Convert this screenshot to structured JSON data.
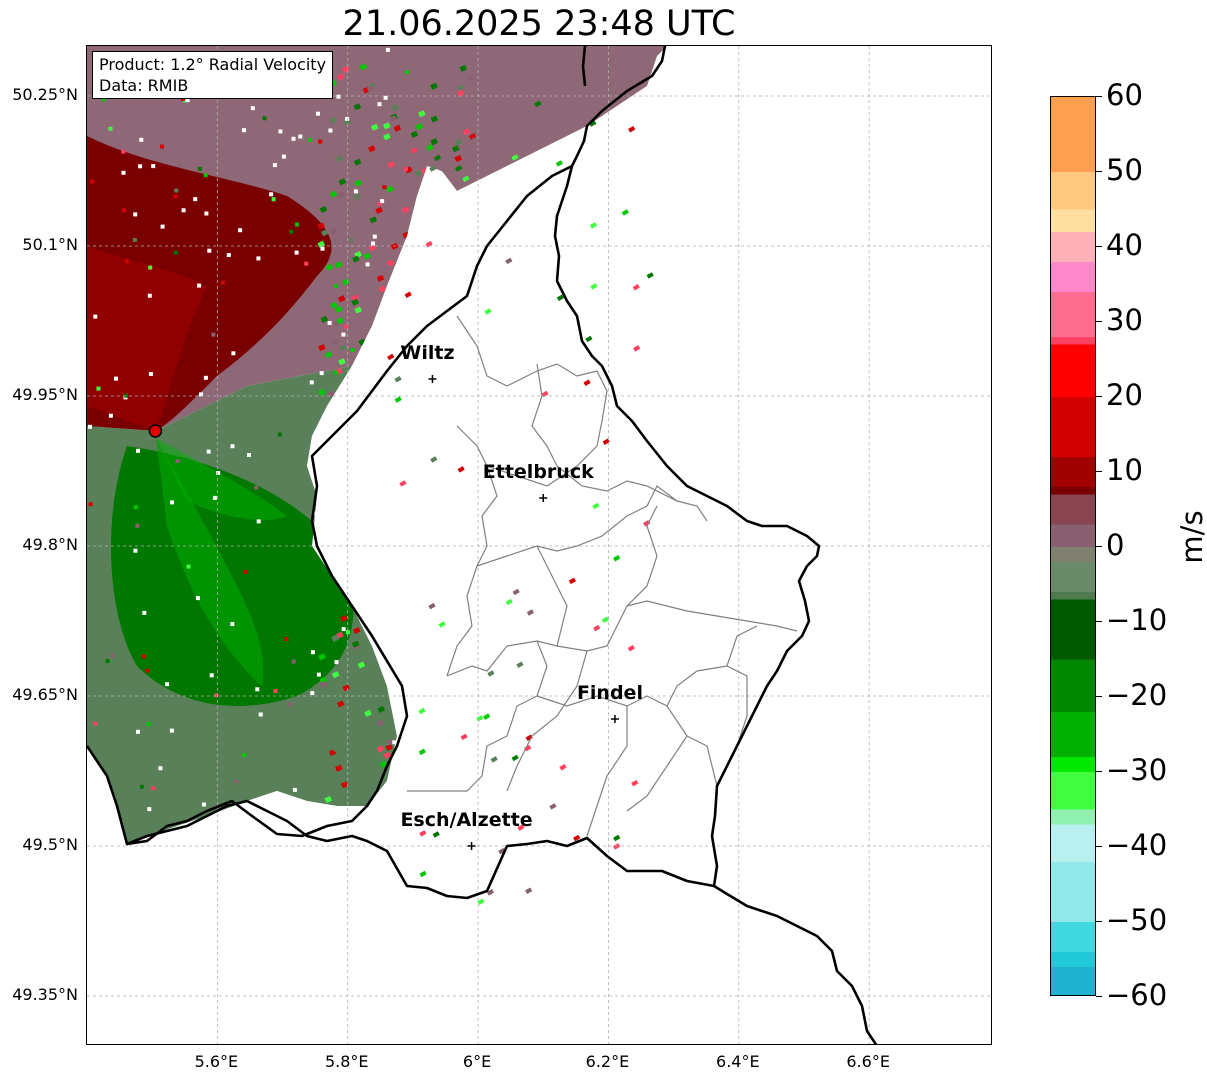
{
  "title": "21.06.2025 23:48 UTC",
  "info": {
    "product": "Product: 1.2° Radial Velocity",
    "data": "Data: RMIB"
  },
  "cities": [
    {
      "name": "Wiltz",
      "lon": 5.93,
      "lat": 49.967
    },
    {
      "name": "Ettelbruck",
      "lon": 6.1,
      "lat": 49.848
    },
    {
      "name": "Findel",
      "lon": 6.21,
      "lat": 49.627
    },
    {
      "name": "Esch/Alzette",
      "lon": 5.99,
      "lat": 49.5
    }
  ],
  "radar_site": {
    "lon": 5.505,
    "lat": 49.915,
    "color": "#e00000"
  },
  "axes": {
    "lon_ticks": [
      {
        "value": 5.6,
        "label": "5.6°E"
      },
      {
        "value": 5.8,
        "label": "5.8°E"
      },
      {
        "value": 6.0,
        "label": "6°E"
      },
      {
        "value": 6.2,
        "label": "6.2°E"
      },
      {
        "value": 6.4,
        "label": "6.4°E"
      },
      {
        "value": 6.6,
        "label": "6.6°E"
      }
    ],
    "lat_ticks": [
      {
        "value": 50.25,
        "label": "50.25°N"
      },
      {
        "value": 50.1,
        "label": "50.1°N"
      },
      {
        "value": 49.95,
        "label": "49.95°N"
      },
      {
        "value": 49.8,
        "label": "49.8°N"
      },
      {
        "value": 49.65,
        "label": "49.65°N"
      },
      {
        "value": 49.5,
        "label": "49.5°N"
      },
      {
        "value": 49.35,
        "label": "49.35°N"
      }
    ],
    "lon_range": [
      5.4,
      6.79
    ],
    "lat_range": [
      49.3,
      50.3
    ],
    "grid": true
  },
  "colorbar": {
    "label": "m/s",
    "range": [
      -60,
      60
    ],
    "ticks": [
      {
        "value": 60,
        "label": "60"
      },
      {
        "value": 50,
        "label": "50"
      },
      {
        "value": 40,
        "label": "40"
      },
      {
        "value": 30,
        "label": "30"
      },
      {
        "value": 20,
        "label": "20"
      },
      {
        "value": 10,
        "label": "10"
      },
      {
        "value": 0,
        "label": "0"
      },
      {
        "value": -10,
        "label": "−10"
      },
      {
        "value": -20,
        "label": "−20"
      },
      {
        "value": -30,
        "label": "−30"
      },
      {
        "value": -40,
        "label": "−40"
      },
      {
        "value": -50,
        "label": "−50"
      },
      {
        "value": -60,
        "label": "−60"
      }
    ],
    "stops": [
      {
        "value": 60,
        "color": "#ffa050"
      },
      {
        "value": 50,
        "color": "#ffc880"
      },
      {
        "value": 45,
        "color": "#ffe0a0"
      },
      {
        "value": 42,
        "color": "#ffb0b8"
      },
      {
        "value": 38,
        "color": "#ff88cc"
      },
      {
        "value": 34,
        "color": "#ff6e90"
      },
      {
        "value": 28,
        "color": "#ff4060"
      },
      {
        "value": 27,
        "color": "#ff0000"
      },
      {
        "value": 20,
        "color": "#d40000"
      },
      {
        "value": 12,
        "color": "#a00000"
      },
      {
        "value": 8,
        "color": "#7a0000"
      },
      {
        "value": 7,
        "color": "#884450"
      },
      {
        "value": 3,
        "color": "#886070"
      },
      {
        "value": 0,
        "color": "#808070"
      },
      {
        "value": -2,
        "color": "#6a8a6a"
      },
      {
        "value": -6,
        "color": "#4f7a4f"
      },
      {
        "value": -7,
        "color": "#005a00"
      },
      {
        "value": -15,
        "color": "#008800"
      },
      {
        "value": -22,
        "color": "#00b000"
      },
      {
        "value": -28,
        "color": "#00e800"
      },
      {
        "value": -30,
        "color": "#40ff40"
      },
      {
        "value": -35,
        "color": "#90f0b0"
      },
      {
        "value": -37,
        "color": "#b8f0f0"
      },
      {
        "value": -42,
        "color": "#90e8e8"
      },
      {
        "value": -50,
        "color": "#40d8e0"
      },
      {
        "value": -54,
        "color": "#20c8d8"
      },
      {
        "value": -56,
        "color": "#20b0d0"
      },
      {
        "value": -60,
        "color": "#2080c8"
      }
    ]
  }
}
